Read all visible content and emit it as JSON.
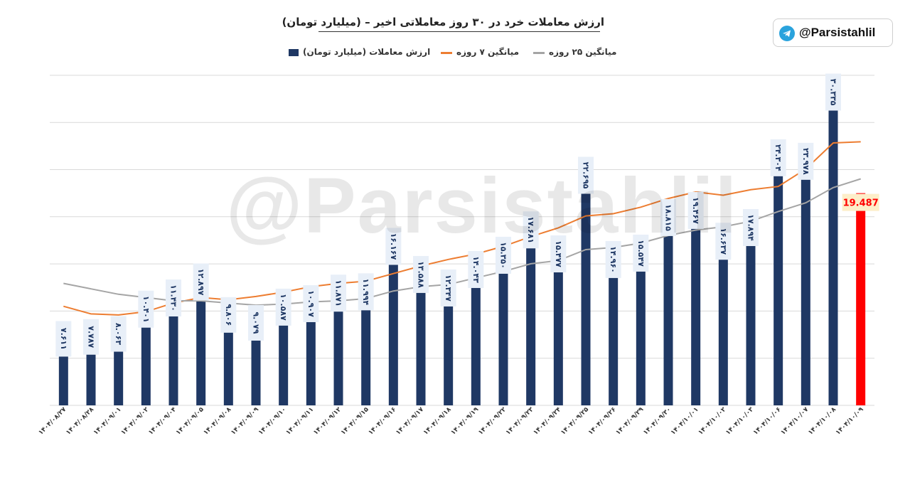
{
  "header": {
    "title": "ارزش معاملات خرد در ۳۰ روز معاملاتی اخیر – (میلیارد تومان)",
    "handle": "@Parsistahlil",
    "handle_icon": "telegram-icon"
  },
  "watermark": "@Parsistahlil",
  "legend": {
    "bar_label": "ارزش معاملات (میلیارد تومان)",
    "ma7_label": "میانگین ۷ روزه",
    "ma25_label": "میانگین ۲۵ روزه"
  },
  "colors": {
    "bar": "#1f3864",
    "last_bar": "#ff0000",
    "ma7": "#ed7d31",
    "ma25": "#a5a5a5",
    "grid": "#d9d9d9",
    "label_bg": "#e8eff8",
    "last_label_bg": "#fdeec9"
  },
  "chart_data": {
    "type": "bar",
    "title": "ارزش معاملات خرد در ۳۰ روز معاملاتی اخیر – (میلیارد تومان)",
    "ylim": [
      0,
      30
    ],
    "grid": true,
    "legend_position": "top",
    "categories": [
      "۱۴۰۴/۰۸/۲۷",
      "۱۴۰۴/۰۸/۲۸",
      "۱۴۰۴/۰۹/۰۱",
      "۱۴۰۴/۰۹/۰۲",
      "۱۴۰۴/۰۹/۰۴",
      "۱۴۰۴/۰۹/۰۵",
      "۱۴۰۴/۰۹/۰۸",
      "۱۴۰۴/۰۹/۰۹",
      "۱۴۰۴/۰۹/۱۰",
      "۱۴۰۴/۰۹/۱۱",
      "۱۴۰۴/۰۹/۱۲",
      "۱۴۰۴/۰۹/۱۵",
      "۱۴۰۴/۰۹/۱۶",
      "۱۴۰۴/۰۹/۱۷",
      "۱۴۰۴/۰۹/۱۸",
      "۱۴۰۴/۰۹/۱۹",
      "۱۴۰۴/۰۹/۲۲",
      "۱۴۰۴/۰۹/۲۳",
      "۱۴۰۴/۰۹/۲۴",
      "۱۴۰۴/۰۹/۲۵",
      "۱۴۰۴/۰۹/۲۶",
      "۱۴۰۴/۰۹/۲۹",
      "۱۴۰۴/۰۹/۳۰",
      "۱۴۰۴/۱۰/۰۱",
      "۱۴۰۴/۱۰/۰۲",
      "۱۴۰۴/۱۰/۰۳",
      "۱۴۰۴/۱۰/۰۶",
      "۱۴۰۴/۱۰/۰۷",
      "۱۴۰۴/۱۰/۰۸",
      "۱۴۰۴/۱۰/۰۹"
    ],
    "series": [
      {
        "name": "ارزش معاملات (میلیارد تومان)",
        "values": [
          7.611,
          7.787,
          8.063,
          10.401,
          11.43,
          12.897,
          9.806,
          9.079,
          10.587,
          10.907,
          11.871,
          11.994,
          16.167,
          13.588,
          12.347,
          14.043,
          15.35,
          17.681,
          15.477,
          22.695,
          14.96,
          15.547,
          18.815,
          19.467,
          16.637,
          17.894,
          24.304,
          23.978,
          30.335,
          19.487
        ],
        "labels": [
          "۷.۶۱۱",
          "۷.۷۸۷",
          "۸.۰۶۳",
          "۱۰.۴۰۱",
          "۱۱.۴۳۰",
          "۱۲.۸۹۷",
          "۹.۸۰۶",
          "۹.۰۷۹",
          "۱۰.۵۸۷",
          "۱۰.۹۰۷",
          "۱۱.۸۷۱",
          "۱۱.۹۹۴",
          "۱۶.۱۶۷",
          "۱۳.۵۸۸",
          "۱۲.۳۴۷",
          "۱۴.۰۴۳",
          "۱۵.۳۵۰",
          "۱۷.۶۸۱",
          "۱۵.۴۷۷",
          "۲۲.۶۹۵",
          "۱۴.۹۶۰",
          "۱۵.۵۴۷",
          "۱۸.۸۱۵",
          "۱۹.۴۶۷",
          "۱۶.۶۳۷",
          "۱۷.۸۹۴",
          "۲۴.۳۰۴",
          "۲۳.۹۷۸",
          "۳۰.۳۳۵",
          "19.487"
        ]
      },
      {
        "name": "میانگین ۷ روزه",
        "type": "line",
        "values": [
          9.1,
          8.4,
          8.3,
          8.6,
          9.4,
          9.9,
          9.7,
          10.0,
          10.4,
          10.9,
          11.2,
          11.4,
          12.1,
          12.8,
          13.4,
          13.9,
          14.6,
          15.5,
          16.3,
          17.4,
          17.6,
          18.2,
          19.0,
          19.6,
          19.3,
          19.8,
          20.1,
          21.7,
          24.1,
          24.2
        ]
      },
      {
        "name": "میانگین ۲۵ روزه",
        "type": "line",
        "values": [
          11.2,
          10.7,
          10.2,
          9.9,
          9.6,
          9.6,
          9.4,
          9.2,
          9.3,
          9.5,
          9.6,
          9.8,
          10.5,
          10.9,
          11.1,
          11.7,
          12.3,
          13.0,
          13.3,
          14.3,
          14.5,
          14.9,
          15.6,
          16.1,
          16.4,
          16.9,
          17.8,
          18.6,
          20.0,
          20.8
        ]
      }
    ]
  }
}
